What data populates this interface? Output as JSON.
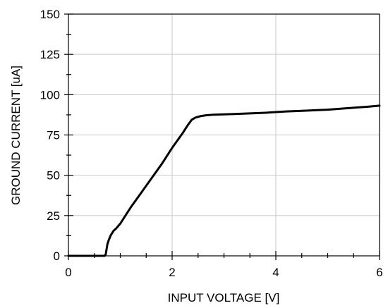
{
  "chart_data": {
    "type": "line",
    "title": "",
    "xlabel": "INPUT VOLTAGE [V]",
    "ylabel": "GROUND CURRENT [uA]",
    "xlim": [
      0,
      6
    ],
    "ylim": [
      0,
      150
    ],
    "xticks": [
      0,
      2,
      4,
      6
    ],
    "yticks": [
      0,
      25,
      50,
      75,
      100,
      125,
      150
    ],
    "x_minor_step": 0.5,
    "y_minor_step": 12.5,
    "grid": true,
    "line_color": "#000000",
    "series": [
      {
        "x": [
          0,
          0.5,
          0.7,
          0.72,
          0.73,
          0.75,
          0.78,
          0.82,
          0.87,
          0.92,
          1.0,
          1.1,
          1.2,
          1.4,
          1.6,
          1.8,
          2.0,
          2.2,
          2.3,
          2.38,
          2.45,
          2.55,
          2.65,
          2.8,
          3.0,
          3.2,
          3.5,
          3.8,
          4.0,
          4.2,
          4.5,
          4.8,
          5.0,
          5.2,
          5.5,
          5.8,
          6.0
        ],
        "y": [
          0,
          0,
          0,
          1,
          3,
          7,
          10,
          13,
          15.5,
          17,
          20,
          25,
          30,
          39,
          48,
          57,
          67,
          76,
          81,
          84.5,
          85.8,
          86.7,
          87.2,
          87.6,
          87.8,
          88.0,
          88.4,
          88.8,
          89.2,
          89.6,
          90.0,
          90.4,
          90.7,
          91.2,
          91.9,
          92.6,
          93.2
        ]
      }
    ]
  }
}
